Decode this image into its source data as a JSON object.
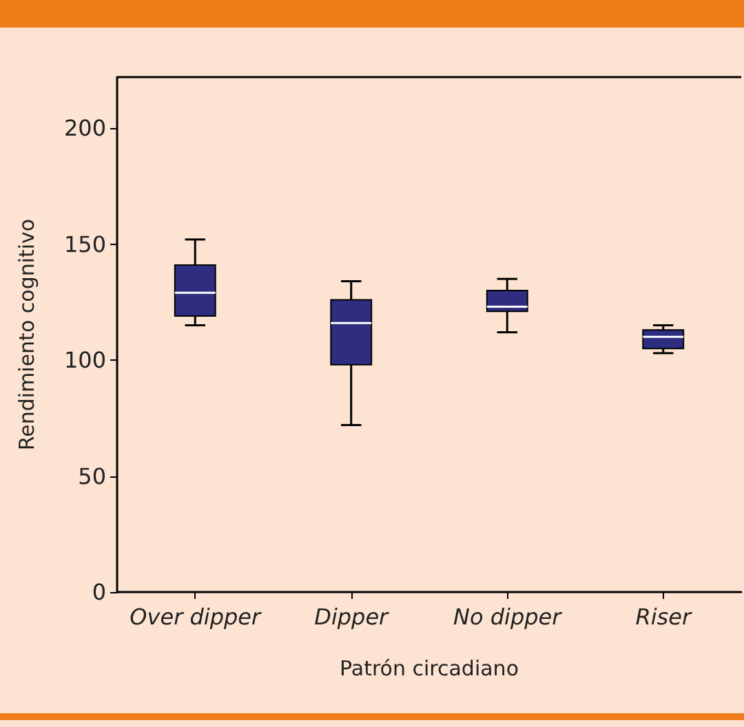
{
  "chart_data": {
    "type": "box",
    "xlabel": "Patrón circadiano",
    "ylabel": "Rendimiento cognitivo",
    "categories": [
      "Over dipper",
      "Dipper",
      "No dipper",
      "Riser"
    ],
    "boxes": [
      {
        "low": 115,
        "q1": 119,
        "median": 129,
        "q3": 141,
        "high": 152
      },
      {
        "low": 72,
        "q1": 98,
        "median": 116,
        "q3": 126,
        "high": 134
      },
      {
        "low": 112,
        "q1": 121,
        "median": 123,
        "q3": 130,
        "high": 135
      },
      {
        "low": 103,
        "q1": 105,
        "median": 110,
        "q3": 113,
        "high": 115
      }
    ],
    "color": "#2e2d80",
    "ylim": [
      0,
      222
    ],
    "yticks": [
      0,
      50,
      100,
      150,
      200
    ],
    "grid": false
  }
}
